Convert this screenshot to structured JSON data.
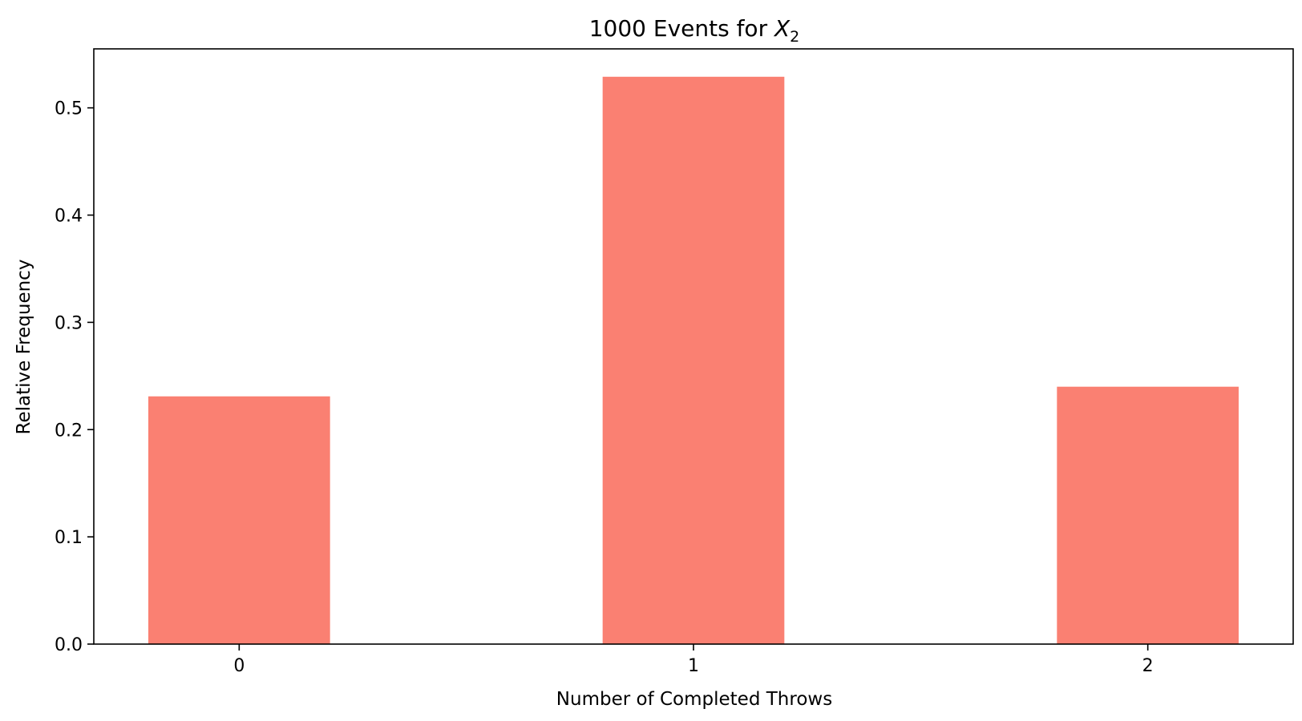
{
  "chart_data": {
    "type": "bar",
    "title": "1000 Events for ",
    "title_math_var": "X",
    "title_math_sub": "2",
    "xlabel": "Number of Completed Throws",
    "ylabel": "Relative Frequency",
    "categories": [
      "0",
      "1",
      "2"
    ],
    "values": [
      0.231,
      0.529,
      0.24
    ],
    "ylim": [
      0,
      0.555
    ],
    "yticks": [
      0.0,
      0.1,
      0.2,
      0.3,
      0.4,
      0.5
    ],
    "ytick_labels": [
      "0.0",
      "0.1",
      "0.2",
      "0.3",
      "0.4",
      "0.5"
    ],
    "bar_color": "#fa8072",
    "grid": false,
    "legend": false
  }
}
